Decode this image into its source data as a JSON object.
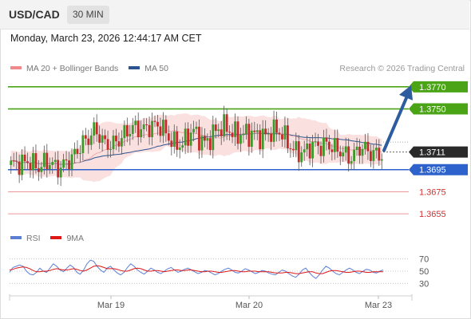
{
  "header": {
    "symbol": "USD/CAD",
    "timeframe": "30 MIN"
  },
  "datetime": "Monday, March 23, 2026 12:44:17 AM CET",
  "legend": {
    "main": [
      {
        "label": "MA 20 + Bollinger Bands",
        "color": "#f08a8a"
      },
      {
        "label": "MA 50",
        "color": "#2c5490"
      }
    ],
    "rsi": [
      {
        "label": "RSI",
        "color": "#5b7fd4"
      },
      {
        "label": "9MA",
        "color": "#e01818"
      }
    ]
  },
  "credit": "Research © 2026 Trading Central",
  "chart_data": [
    {
      "type": "candlestick",
      "ylim": [
        1.3645,
        1.378
      ],
      "x_ticks": [
        "Mar 19",
        "Mar 20",
        "Mar 23"
      ],
      "current_price": "1.3711",
      "levels": [
        {
          "value": 1.377,
          "label": "1.3770",
          "kind": "target"
        },
        {
          "value": 1.375,
          "label": "1.3750",
          "kind": "resistance"
        },
        {
          "value": 1.3695,
          "label": "1.3695",
          "kind": "pivot"
        },
        {
          "value": 1.3675,
          "label": "1.3675",
          "kind": "support"
        },
        {
          "value": 1.3655,
          "label": "1.3655",
          "kind": "support"
        }
      ],
      "anchor_closes": [
        [
          0,
          1.3696
        ],
        [
          6,
          1.3706
        ],
        [
          10,
          1.3694
        ],
        [
          14,
          1.3703
        ],
        [
          18,
          1.3698
        ],
        [
          22,
          1.3702
        ],
        [
          26,
          1.3722
        ],
        [
          30,
          1.373
        ],
        [
          34,
          1.3716
        ],
        [
          38,
          1.3723
        ],
        [
          42,
          1.3727
        ],
        [
          46,
          1.3733
        ],
        [
          50,
          1.3736
        ],
        [
          54,
          1.3731
        ],
        [
          58,
          1.3723
        ],
        [
          62,
          1.3718
        ],
        [
          66,
          1.3728
        ],
        [
          70,
          1.3722
        ],
        [
          74,
          1.3728
        ],
        [
          78,
          1.3733
        ],
        [
          82,
          1.3729
        ],
        [
          86,
          1.3724
        ],
        [
          90,
          1.3727
        ],
        [
          94,
          1.373
        ],
        [
          98,
          1.3725
        ],
        [
          102,
          1.3716
        ],
        [
          106,
          1.3709
        ],
        [
          110,
          1.3716
        ],
        [
          114,
          1.3721
        ],
        [
          118,
          1.371
        ],
        [
          122,
          1.3707
        ],
        [
          126,
          1.3716
        ],
        [
          130,
          1.3707
        ],
        [
          134,
          1.3711
        ]
      ],
      "trend_arrow": {
        "from": 1.3711,
        "to": 1.377
      }
    },
    {
      "type": "line",
      "ylim": [
        20,
        80
      ],
      "y_ticks": [
        70,
        50,
        30
      ],
      "series": [
        {
          "name": "RSI",
          "values": [
            48,
            56,
            58,
            60,
            58,
            50,
            45,
            44,
            48,
            55,
            50,
            48,
            55,
            62,
            58,
            52,
            49,
            55,
            60,
            56,
            48,
            45,
            52,
            62,
            68,
            66,
            58,
            52,
            48,
            55,
            58,
            52,
            47,
            44,
            48,
            56,
            62,
            58,
            52,
            48,
            45,
            50,
            55,
            52,
            48,
            46,
            50,
            54,
            56,
            52,
            48,
            50,
            53,
            55,
            52,
            49,
            46,
            48,
            51,
            50,
            47,
            44,
            46,
            50,
            53,
            55,
            52,
            48,
            47,
            50,
            54,
            52,
            49,
            46,
            48,
            51,
            50,
            47,
            45,
            44,
            48,
            52,
            50,
            46,
            42,
            40,
            45,
            52,
            55,
            48,
            42,
            38,
            44,
            52,
            58,
            55,
            50,
            46,
            44,
            48,
            52,
            55,
            52,
            48,
            46,
            50,
            53,
            52,
            48,
            47,
            50,
            52
          ]
        },
        {
          "name": "9MA",
          "values": [
            52,
            53,
            55,
            56,
            57,
            56,
            54,
            51,
            49,
            49,
            50,
            50,
            51,
            53,
            54,
            53,
            52,
            52,
            53,
            54,
            53,
            51,
            50,
            52,
            55,
            58,
            59,
            58,
            56,
            54,
            54,
            54,
            53,
            51,
            50,
            50,
            52,
            54,
            55,
            54,
            52,
            50,
            50,
            51,
            51,
            50,
            49,
            50,
            51,
            52,
            52,
            51,
            51,
            52,
            52,
            51,
            50,
            49,
            49,
            50,
            50,
            49,
            48,
            48,
            49,
            50,
            51,
            51,
            50,
            49,
            49,
            50,
            50,
            50,
            49,
            49,
            49,
            49,
            48,
            47,
            47,
            47,
            48,
            48,
            47,
            46,
            46,
            47,
            48,
            49,
            49,
            47,
            46,
            46,
            48,
            50,
            51,
            51,
            50,
            49,
            48,
            48,
            49,
            50,
            50,
            49,
            48,
            48,
            49,
            49,
            49,
            49
          ]
        }
      ]
    }
  ]
}
